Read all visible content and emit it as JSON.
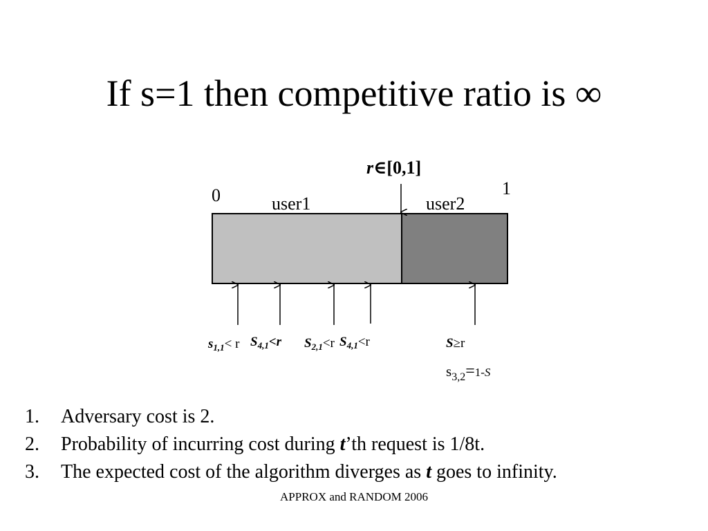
{
  "title": "If s=1 then competitive ratio is ∞",
  "diagram": {
    "r_label": {
      "var": "r",
      "rest": "∈[0,1]"
    },
    "left_end": "0",
    "right_end": "1",
    "segment_labels": [
      "user1",
      "user2"
    ],
    "colors": {
      "user1": "#c0c0c0",
      "user2": "#808080"
    },
    "requests": [
      {
        "s": "s",
        "sub": "1,1",
        "rel": "< r"
      },
      {
        "s": "S",
        "sub": "4,1",
        "rel": "<r"
      },
      {
        "s": "S",
        "sub": "2,1",
        "rel": "<r"
      },
      {
        "s": "S",
        "sub": "4,1",
        "rel": "<r"
      },
      {
        "s": "S",
        "sub": "",
        "rel": "≥r"
      }
    ],
    "s32": {
      "base": "s",
      "sub": "3,2",
      "eq": "=",
      "rest": "1-",
      "var": "S"
    }
  },
  "steps": [
    {
      "num": "1.",
      "parts": [
        "Adversary cost is 2."
      ]
    },
    {
      "num": "2.",
      "parts": [
        "Probability of incurring cost during ",
        "t",
        "’th request is 1/8t."
      ]
    },
    {
      "num": "3.",
      "parts": [
        "The expected cost of the algorithm diverges as ",
        "t",
        " goes to infinity."
      ]
    }
  ],
  "footer": "APPROX and RANDOM 2006"
}
